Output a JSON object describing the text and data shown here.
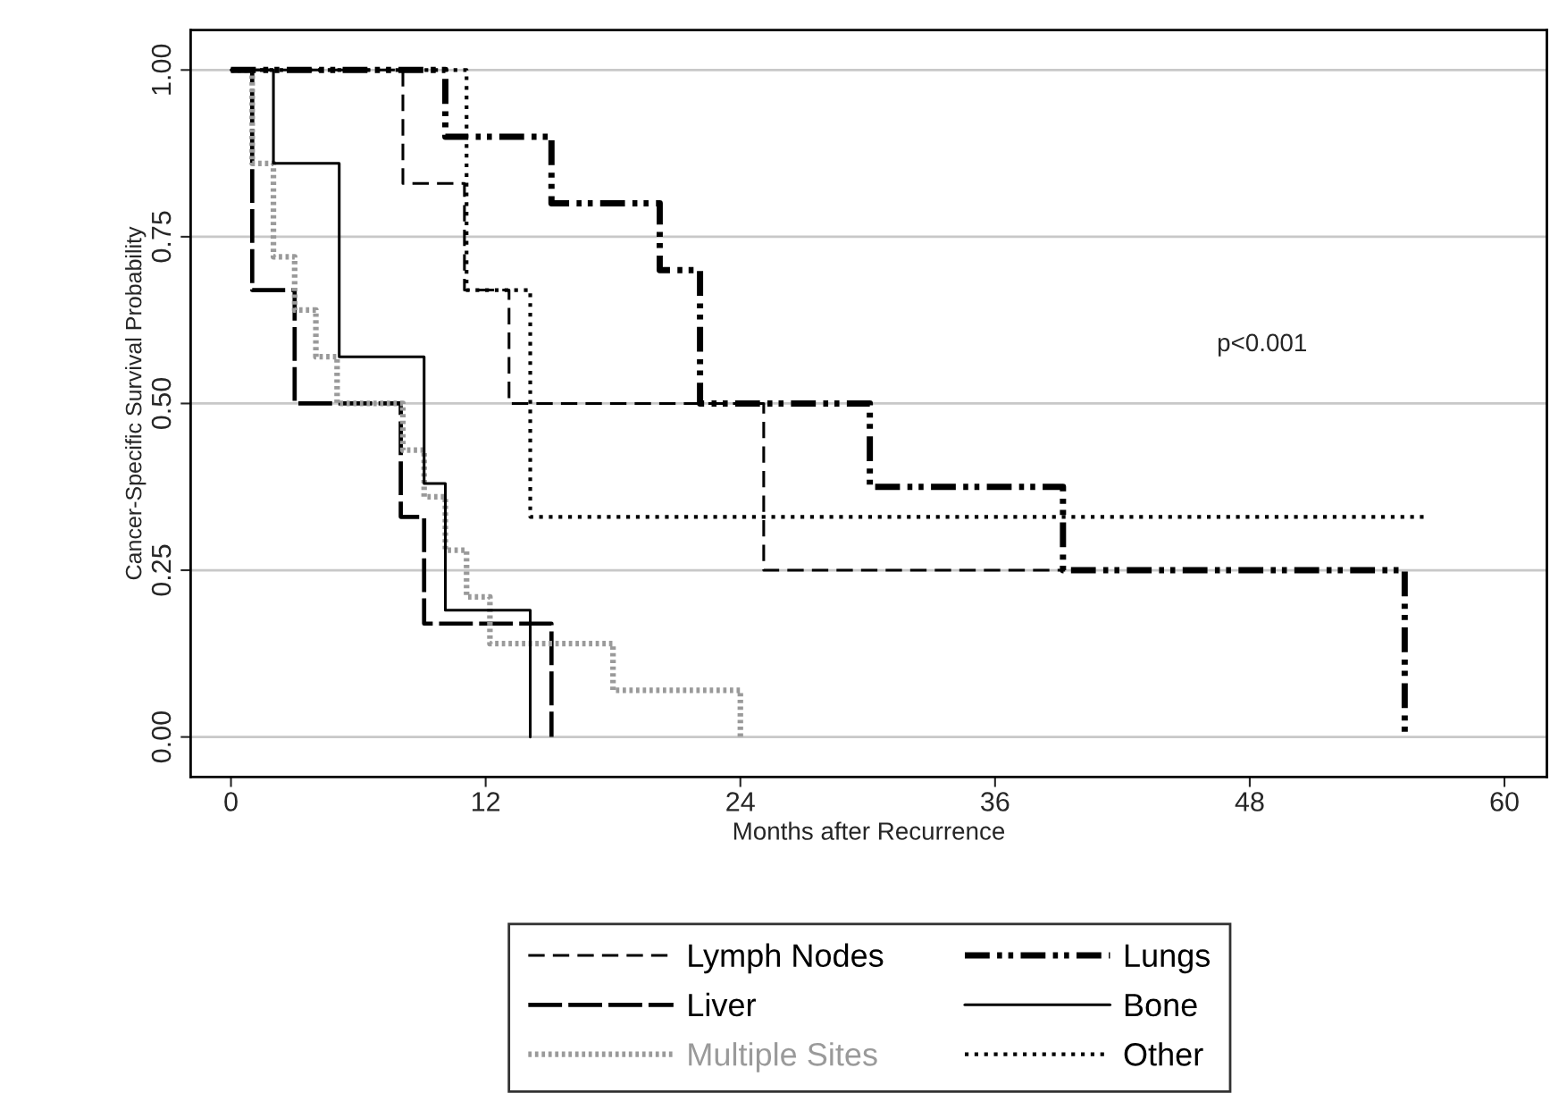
{
  "chart_data": {
    "type": "step",
    "xlabel": "Months after Recurrence",
    "ylabel": "Cancer-Specific Survival Probability",
    "xlim": [
      -1.9,
      62
    ],
    "xticks": [
      0,
      12,
      24,
      36,
      48,
      60
    ],
    "ylim": [
      -0.06,
      1.06
    ],
    "yticks": [
      {
        "value": 0,
        "label": "0.00"
      },
      {
        "value": 0.25,
        "label": "0.25"
      },
      {
        "value": 0.5,
        "label": "0.50"
      },
      {
        "value": 0.75,
        "label": "0.75"
      },
      {
        "value": 1,
        "label": "1.00"
      }
    ],
    "grid": "y",
    "legend": "bottom",
    "marker": "none",
    "annotations": [
      "p<0.001"
    ],
    "series": [
      {
        "name": "Lymph Nodes",
        "color": "#000000",
        "line_style": "dashed",
        "x": [
          0,
          8.1,
          11.0,
          13.1,
          25.1,
          39.3
        ],
        "values": [
          1.0,
          0.83,
          0.67,
          0.5,
          0.25,
          0.25
        ]
      },
      {
        "name": "Liver",
        "color": "#000000",
        "line_style": "longdash",
        "x": [
          0,
          1.0,
          3.0,
          8.0,
          9.1,
          15.1
        ],
        "values": [
          1.0,
          0.67,
          0.5,
          0.33,
          0.17,
          0.0
        ]
      },
      {
        "name": "Multiple Sites",
        "color": "#9a9a9a",
        "line_style": "densedot",
        "x": [
          0,
          1.0,
          2.0,
          3.0,
          4.0,
          5.0,
          8.1,
          9.1,
          10.1,
          11.1,
          12.2,
          18.0,
          24.0
        ],
        "values": [
          1.0,
          0.86,
          0.72,
          0.64,
          0.57,
          0.5,
          0.43,
          0.36,
          0.28,
          0.21,
          0.14,
          0.07,
          0.0
        ]
      },
      {
        "name": "Lungs",
        "color": "#000000",
        "line_style": "dashdotdot",
        "x": [
          0,
          10.1,
          15.1,
          20.2,
          22.1,
          30.1,
          39.2,
          55.3
        ],
        "values": [
          1.0,
          0.9,
          0.8,
          0.7,
          0.5,
          0.375,
          0.25,
          0.0
        ]
      },
      {
        "name": "Bone",
        "color": "#000000",
        "line_style": "solid",
        "x": [
          0,
          2.0,
          5.1,
          9.1,
          10.1,
          14.1
        ],
        "values": [
          1.0,
          0.86,
          0.57,
          0.38,
          0.19,
          0.0
        ]
      },
      {
        "name": "Other",
        "color": "#000000",
        "line_style": "dotted",
        "x": [
          0,
          11.1,
          14.1,
          56.3
        ],
        "values": [
          1.0,
          0.67,
          0.33,
          0.33
        ]
      }
    ]
  }
}
